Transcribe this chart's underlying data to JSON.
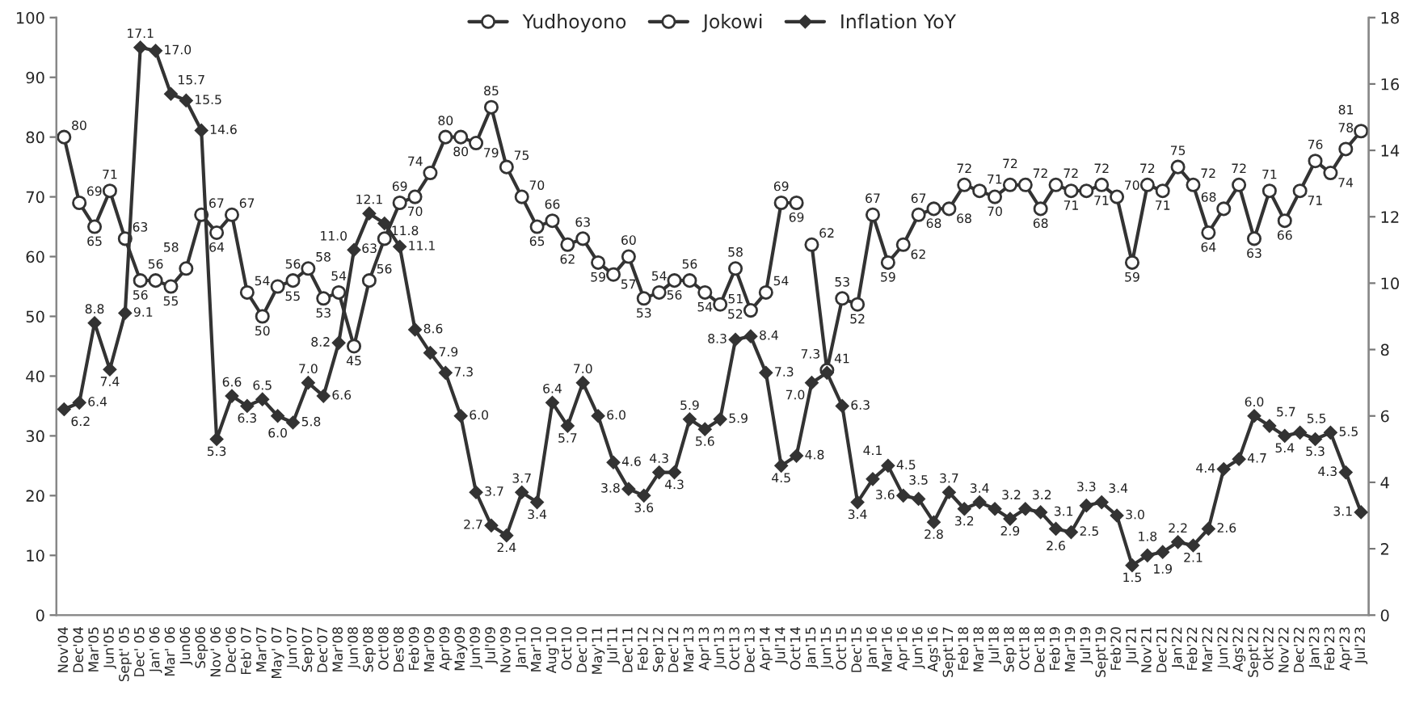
{
  "chart_data": {
    "type": "line",
    "categories": [
      "Nov'04",
      "Dec'04",
      "Mar'05",
      "Jun'05",
      "Sept' 05",
      "Dec' 05",
      "Jan' 06",
      "Mar' 06",
      "Jun06",
      "Sep06",
      "Nov' 06",
      "Dec'06",
      "Feb' 07",
      "Mar'07",
      "May' 07",
      "Jun'07",
      "Sep'07",
      "Dec'07",
      "Mar'08",
      "Jun'08",
      "Sep'08",
      "Oct'08",
      "Des'08",
      "Feb'09",
      "Mar'09",
      "Apr'09",
      "May09",
      "Jun'09",
      "Jul'09",
      "Nov'09",
      "Jan'10",
      "Mar'10",
      "Aug'10",
      "Oct'10",
      "Dec'10",
      "May'11",
      "Jul'11",
      "Dec'11",
      "Feb'12",
      "Sep'12",
      "Dec'12",
      "Mar'13",
      "Apr'13",
      "Jun'13",
      "Oct'13",
      "Dec'13",
      "Apr'14",
      "Jul'14",
      "Oct'14",
      "Jan'15",
      "Jun'15",
      "Oct'15",
      "Dec'15",
      "Jan'16",
      "Mar'16",
      "Apr'16",
      "Jun'16",
      "Ags'16",
      "Sept'17",
      "Feb'18",
      "Mar'18",
      "Jul'18",
      "Sep'18",
      "Oct'18",
      "Dec'18",
      "Feb'19",
      "Mar'19",
      "Jul'19",
      "Sept'19",
      "Feb'20",
      "Jul'21",
      "Nov'21",
      "Dec'21",
      "Jan'22",
      "Feb'22",
      "Mar'22",
      "Jun'22",
      "Ags'22",
      "Sept'22",
      "Okt'22",
      "Nov'22",
      "Dec'22",
      "Jan'23",
      "Feb'23",
      "Apr'23",
      "Jul'23"
    ],
    "series": [
      {
        "name": "Yudhoyono",
        "color": "#333333",
        "marker": "circle",
        "values": [
          80,
          69,
          65,
          71,
          63,
          56,
          56,
          55,
          58,
          67,
          64,
          67,
          54,
          50,
          55,
          56,
          58,
          53,
          54,
          45,
          56,
          63,
          69,
          70,
          74,
          80,
          80,
          79,
          85,
          75,
          70,
          65,
          66,
          62,
          63,
          59,
          57,
          60,
          53,
          54,
          56,
          56,
          54,
          52,
          58,
          51,
          54,
          69,
          69,
          null,
          null,
          null,
          null,
          null,
          null,
          null,
          null,
          null,
          null,
          null,
          null,
          null,
          null,
          null,
          null,
          null,
          null,
          null,
          null,
          null,
          null,
          null,
          null,
          null,
          null,
          null,
          null,
          null,
          null,
          null,
          null,
          null,
          null,
          null,
          null,
          null
        ]
      },
      {
        "name": "Jokowi",
        "color": "#333333",
        "marker": "circle",
        "values": [
          null,
          null,
          null,
          null,
          null,
          null,
          null,
          null,
          null,
          null,
          null,
          null,
          null,
          null,
          null,
          null,
          null,
          null,
          null,
          null,
          null,
          null,
          null,
          null,
          null,
          null,
          null,
          null,
          null,
          null,
          null,
          null,
          null,
          null,
          null,
          null,
          null,
          null,
          null,
          null,
          null,
          null,
          null,
          null,
          null,
          null,
          null,
          null,
          null,
          62,
          41,
          53,
          52,
          67,
          59,
          62,
          67,
          68,
          68,
          72,
          71,
          70,
          72,
          72,
          68,
          72,
          71,
          71,
          72,
          70,
          59,
          72,
          71,
          75,
          72,
          64,
          68,
          72,
          63,
          71,
          66,
          71,
          76,
          74,
          78,
          81
        ]
      },
      {
        "name": "Inflation YoY",
        "color": "#333333",
        "marker": "diamond",
        "axis": "y2",
        "values": [
          6.2,
          6.4,
          8.8,
          7.4,
          9.1,
          17.1,
          17.0,
          15.7,
          15.5,
          14.6,
          5.3,
          6.6,
          6.3,
          6.5,
          6.0,
          5.8,
          7.0,
          6.6,
          8.2,
          11.0,
          12.1,
          11.8,
          11.1,
          8.6,
          7.9,
          7.3,
          6.0,
          3.7,
          2.7,
          2.4,
          3.7,
          3.4,
          6.4,
          5.7,
          7.0,
          6.0,
          4.6,
          3.8,
          3.6,
          4.3,
          4.3,
          5.9,
          5.6,
          5.9,
          8.3,
          8.4,
          7.3,
          4.5,
          4.8,
          7.0,
          7.3,
          6.3,
          3.4,
          4.1,
          4.5,
          3.6,
          3.5,
          2.8,
          3.7,
          3.2,
          3.4,
          3.2,
          2.9,
          3.2,
          3.1,
          2.6,
          2.5,
          3.3,
          3.4,
          3.0,
          1.5,
          1.8,
          1.9,
          2.2,
          2.1,
          2.6,
          4.4,
          4.7,
          6.0,
          5.7,
          5.4,
          5.5,
          5.3,
          5.5,
          4.3,
          3.1
        ],
        "value_labels": [
          "6.2",
          "6.4",
          "8.8",
          "7.4",
          "9.1",
          "17.1",
          "17.0",
          "15.7",
          "15.5",
          "14.6",
          "5.3",
          "6.6",
          "6.3",
          "6.5",
          "6.0",
          "5.8",
          "7.0",
          "6.6",
          "8.2",
          "11.0",
          "12.1",
          "11.8",
          "11.1",
          "8.6",
          "7.9",
          "7.3",
          "6.0",
          "3.7",
          "2.7",
          "2.4",
          "3.7",
          "3.4",
          "6.4",
          "5.7",
          "7.0",
          "6.0",
          "4.6",
          "3.8",
          "3.6",
          "4.3",
          "4.3",
          "5.9",
          "5.6",
          "5.9",
          "8.3",
          "8.4",
          "7.3",
          "4.5",
          "4.8",
          "7.0",
          "7.3",
          "6.3",
          "3.4",
          "4.1",
          "4.5",
          "3.6",
          "3.5",
          "2.8",
          "3.7",
          "3.2",
          "3.4",
          "3.2",
          "2.9",
          "3.2",
          "3.1",
          "2.6",
          "2.5",
          "3.3",
          "3.4",
          "3.0",
          "1.5",
          "1.8",
          "1.9",
          "2.2",
          "2.1",
          "2.6",
          "4.4",
          "4.7",
          "6.0",
          "5.7",
          "5.4",
          "5.5",
          "5.3",
          "5.5",
          "4.3",
          "3.1"
        ]
      }
    ],
    "ylim": [
      0,
      100
    ],
    "yticks": [
      0,
      10,
      20,
      30,
      40,
      50,
      60,
      70,
      80,
      90,
      100
    ],
    "y2lim": [
      0,
      18
    ],
    "y2ticks": [
      0,
      2,
      4,
      6,
      8,
      10,
      12,
      14,
      16,
      18
    ],
    "data_labels": true,
    "grid": false,
    "legend": "top",
    "line_style": "solid"
  }
}
